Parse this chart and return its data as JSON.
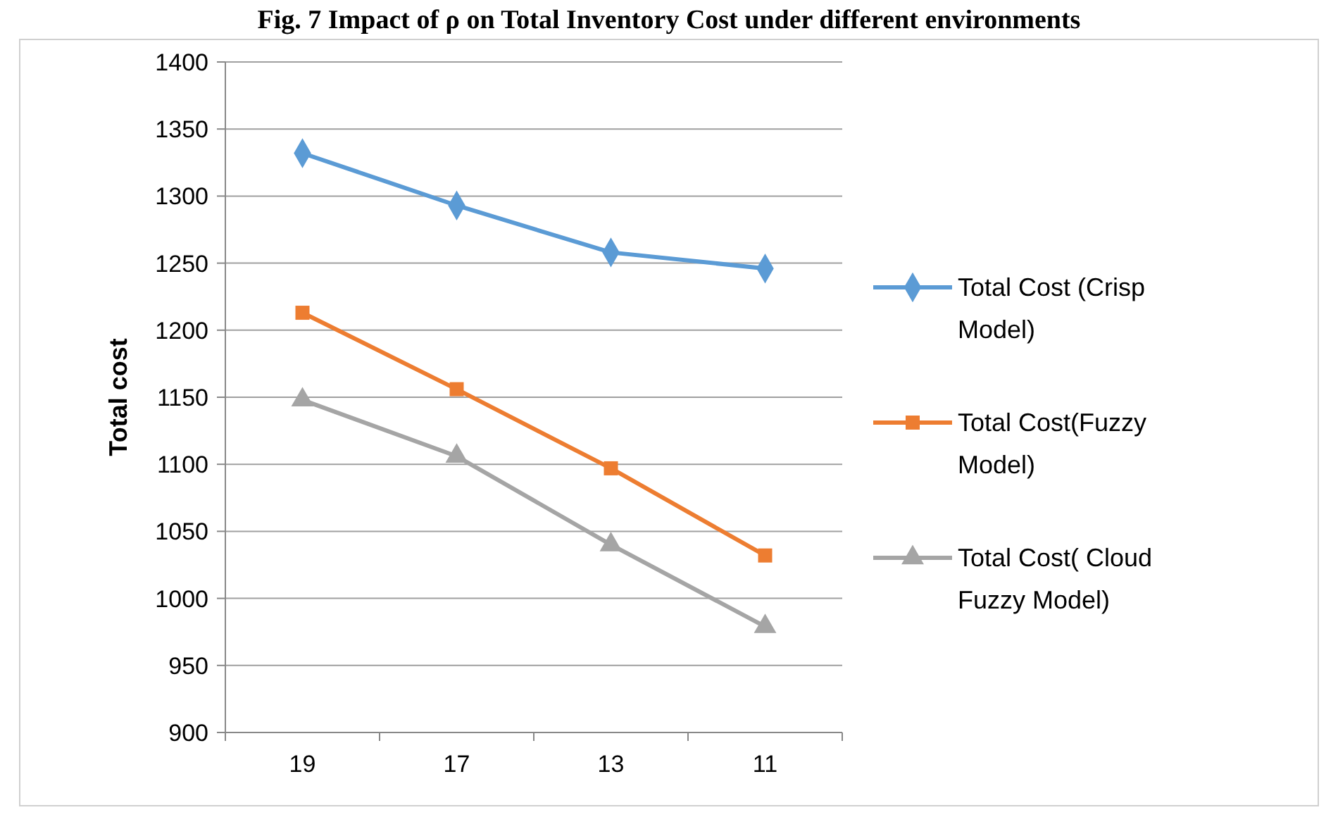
{
  "chart_data": {
    "type": "line",
    "title": "Fig. 7 Impact of ρ on Total Inventory Cost under different environments",
    "ylabel": "Total cost",
    "categories": [
      "19",
      "17",
      "13",
      "11"
    ],
    "series": [
      {
        "name": "Total Cost (Crisp Model)",
        "color": "#5b9bd5",
        "marker": "diamond",
        "values": [
          1332,
          1293,
          1258,
          1246
        ]
      },
      {
        "name": "Total Cost(Fuzzy Model)",
        "color": "#ed7d31",
        "marker": "square",
        "values": [
          1213,
          1156,
          1097,
          1032
        ]
      },
      {
        "name": "Total Cost( Cloud Fuzzy Model)",
        "color": "#a5a5a5",
        "marker": "triangle",
        "values": [
          1148,
          1106,
          1040,
          979
        ]
      }
    ],
    "ylim": [
      900,
      1400
    ],
    "yticks": [
      900,
      950,
      1000,
      1050,
      1100,
      1150,
      1200,
      1250,
      1300,
      1350,
      1400
    ],
    "grid": "y",
    "legend": "right"
  }
}
